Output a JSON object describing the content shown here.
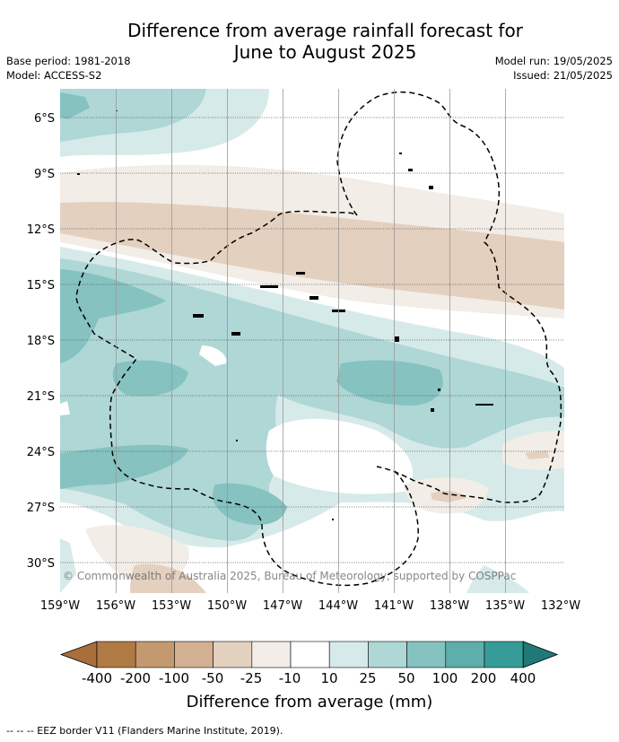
{
  "header": {
    "title_line1": "Difference from average rainfall forecast for",
    "title_line2": "June to August 2025",
    "base_period": "Base period: 1981-2018",
    "model": "Model: ACCESS-S2",
    "model_run": "Model run: 19/05/2025",
    "issued": "Issued: 21/05/2025"
  },
  "map": {
    "lon_labels": [
      "159°W",
      "156°W",
      "153°W",
      "150°W",
      "147°W",
      "144°W",
      "141°W",
      "138°W",
      "135°W",
      "132°W"
    ],
    "lat_labels": [
      "6°S",
      "9°S",
      "12°S",
      "15°S",
      "18°S",
      "21°S",
      "24°S",
      "27°S",
      "30°S"
    ],
    "copyright": "© Commonwealth of Australia 2025, Bureau of Meteorology, supported by COSPPac"
  },
  "legend": {
    "tick_labels": [
      "-400",
      "-200",
      "-100",
      "-50",
      "-25",
      "-10",
      "10",
      "25",
      "50",
      "100",
      "200",
      "400"
    ],
    "colors": [
      "#a96f3b",
      "#b07a45",
      "#c5996f",
      "#d3b092",
      "#e3d0bf",
      "#f3ede7",
      "#ffffff",
      "#d6eae9",
      "#aed7d6",
      "#85c2c0",
      "#5eaeab",
      "#369c98",
      "#1f7a77"
    ],
    "axis_label": "Difference from average (mm)"
  },
  "footer": {
    "eez_note": "--  --  -- EEZ border V11 (Flanders Marine Institute, 2019)."
  }
}
